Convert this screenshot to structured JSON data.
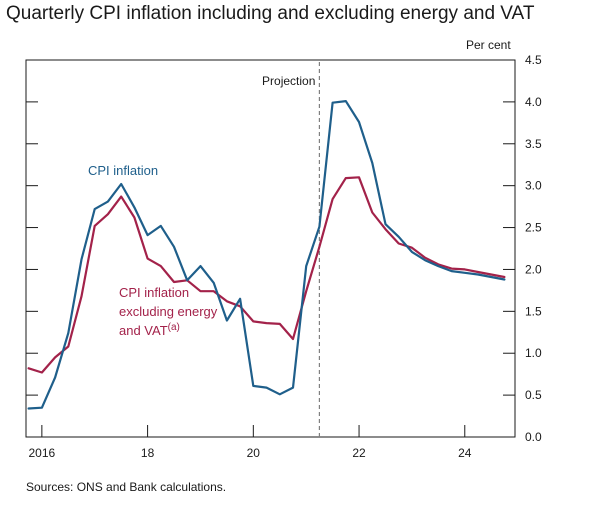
{
  "title": "Quarterly CPI inflation including and excluding energy and VAT",
  "unit_label": "Per cent",
  "source": "Sources: ONS and Bank calculations.",
  "colors": {
    "cpi": "#1f5f8b",
    "core": "#a3224a",
    "projection_line": "#808080",
    "axis": "#1a1a1a"
  },
  "chart_data": {
    "type": "line",
    "ylim": [
      0,
      4.5
    ],
    "yticks": [
      0.0,
      0.5,
      1.0,
      1.5,
      2.0,
      2.5,
      3.0,
      3.5,
      4.0,
      4.5
    ],
    "ytick_labels": [
      "0.0",
      "0.5",
      "1.0",
      "1.5",
      "2.0",
      "2.5",
      "3.0",
      "3.5",
      "4.0",
      "4.5"
    ],
    "xlim": [
      2015.7,
      2024.95
    ],
    "xticks": [
      2016,
      2018,
      2020,
      2022,
      2024
    ],
    "xtick_labels": [
      "2016",
      "18",
      "20",
      "22",
      "24"
    ],
    "projection": {
      "label": "Projection",
      "x": 2021.25
    },
    "annotations": {
      "cpi": "CPI inflation",
      "core_lines": [
        "CPI inflation",
        "excluding energy",
        "and VAT"
      ],
      "core_superscript": "(a)"
    },
    "series": [
      {
        "name": "CPI inflation",
        "x": [
          2015.75,
          2016.0,
          2016.25,
          2016.5,
          2016.75,
          2017.0,
          2017.25,
          2017.5,
          2017.75,
          2018.0,
          2018.25,
          2018.5,
          2018.75,
          2019.0,
          2019.25,
          2019.5,
          2019.75,
          2020.0,
          2020.25,
          2020.5,
          2020.75,
          2021.0,
          2021.25,
          2021.5,
          2021.75,
          2022.0,
          2022.25,
          2022.5,
          2022.75,
          2023.0,
          2023.25,
          2023.5,
          2023.75,
          2024.0,
          2024.25,
          2024.5,
          2024.75
        ],
        "y": [
          0.34,
          0.35,
          0.71,
          1.24,
          2.12,
          2.72,
          2.81,
          3.02,
          2.74,
          2.41,
          2.52,
          2.27,
          1.87,
          2.04,
          1.84,
          1.39,
          1.65,
          0.61,
          0.59,
          0.51,
          0.59,
          2.04,
          2.51,
          3.99,
          4.01,
          3.76,
          3.27,
          2.54,
          2.39,
          2.21,
          2.11,
          2.04,
          1.98,
          1.96,
          1.94,
          1.91,
          1.88
        ]
      },
      {
        "name": "CPI inflation excluding energy and VAT",
        "x": [
          2015.75,
          2016.0,
          2016.25,
          2016.5,
          2016.75,
          2017.0,
          2017.25,
          2017.5,
          2017.75,
          2018.0,
          2018.25,
          2018.5,
          2018.75,
          2019.0,
          2019.25,
          2019.5,
          2019.75,
          2020.0,
          2020.25,
          2020.5,
          2020.75,
          2021.0,
          2021.25,
          2021.5,
          2021.75,
          2022.0,
          2022.25,
          2022.5,
          2022.75,
          2023.0,
          2023.25,
          2023.5,
          2023.75,
          2024.0,
          2024.25,
          2024.5,
          2024.75
        ],
        "y": [
          0.82,
          0.77,
          0.95,
          1.08,
          1.68,
          2.52,
          2.66,
          2.87,
          2.62,
          2.13,
          2.04,
          1.85,
          1.87,
          1.74,
          1.74,
          1.62,
          1.56,
          1.38,
          1.36,
          1.35,
          1.17,
          1.74,
          2.27,
          2.84,
          3.09,
          3.1,
          2.68,
          2.48,
          2.31,
          2.26,
          2.14,
          2.06,
          2.01,
          2.0,
          1.97,
          1.94,
          1.91
        ]
      }
    ]
  }
}
